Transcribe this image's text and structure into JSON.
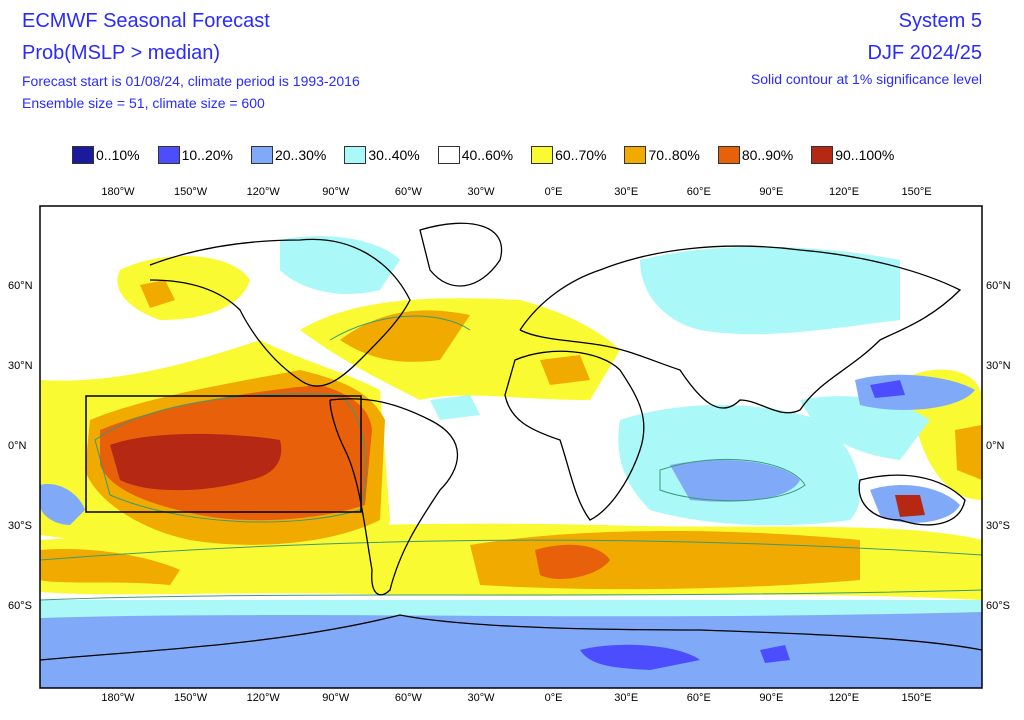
{
  "header": {
    "title": "ECMWF Seasonal Forecast",
    "subtitle": "Prob(MSLP > median)",
    "info1": "Forecast start is 01/08/24, climate period is 1993-2016",
    "info2": "Ensemble size = 51, climate size = 600",
    "system": "System 5",
    "season": "DJF 2024/25",
    "note": "Solid contour at 1% significance level"
  },
  "legend": [
    {
      "label": "0..10%",
      "color": "#1a1a9c"
    },
    {
      "label": "10..20%",
      "color": "#4b4dff"
    },
    {
      "label": "20..30%",
      "color": "#80aaf8"
    },
    {
      "label": "30..40%",
      "color": "#aaf8f8"
    },
    {
      "label": "40..60%",
      "color": "#ffffff"
    },
    {
      "label": "60..70%",
      "color": "#fafa32"
    },
    {
      "label": "70..80%",
      "color": "#f0aa00"
    },
    {
      "label": "80..90%",
      "color": "#e8600a"
    },
    {
      "label": "90..100%",
      "color": "#b42814"
    }
  ],
  "lon_ticks": [
    "180°W",
    "150°W",
    "120°W",
    "90°W",
    "60°W",
    "30°W",
    "0°E",
    "30°E",
    "60°E",
    "90°E",
    "120°E",
    "150°E"
  ],
  "lat_ticks": [
    "60°N",
    "30°N",
    "0°N",
    "30°S",
    "60°S"
  ],
  "colors": {
    "text": "#2a2aff",
    "contour": "#3c9a78"
  }
}
